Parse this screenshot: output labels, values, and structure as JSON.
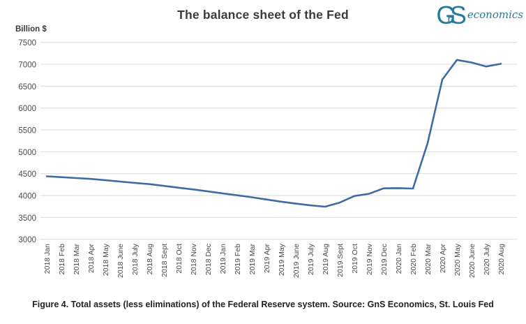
{
  "header": {
    "logo": {
      "monogram_g": "G",
      "monogram_n": "n",
      "monogram_s": "S",
      "word": "economics",
      "color": "#27799B"
    }
  },
  "chart_data": {
    "type": "line",
    "title": "The balance sheet of the Fed",
    "ylabel": "Billion $",
    "xlabel": "",
    "categories": [
      "2018 Jan",
      "2018 Feb",
      "2018 Mar",
      "2018 Apr",
      "2018 May",
      "2018 June",
      "2018 July",
      "2018 Aug",
      "2018 Sept",
      "2018 Oct",
      "2018 Nov",
      "2018 Dec",
      "2019 Jan",
      "2019 Feb",
      "2019 Mar",
      "2019 Apr",
      "2019 May",
      "2019 June",
      "2019 July",
      "2019 Aug",
      "2019 Sept",
      "2019 Oct",
      "2019 Nov",
      "2019 Dec",
      "2020 Jan",
      "2020 Feb",
      "2020 Mar",
      "2020 Apr",
      "2020 May",
      "2020 June",
      "2020 July",
      "2020 Aug"
    ],
    "series": [
      {
        "name": "Total assets (less eliminations)",
        "values": [
          4440,
          4420,
          4400,
          4380,
          4350,
          4320,
          4290,
          4260,
          4220,
          4180,
          4140,
          4095,
          4050,
          4005,
          3960,
          3910,
          3860,
          3815,
          3775,
          3745,
          3840,
          3990,
          4040,
          4165,
          4170,
          4160,
          5200,
          6650,
          7100,
          7040,
          6950,
          7010
        ]
      }
    ],
    "ylim": [
      3000,
      7500
    ],
    "yticks": [
      7500,
      7000,
      6500,
      6000,
      5500,
      5000,
      4500,
      4000,
      3500,
      3000
    ],
    "grid": "horizontal",
    "legend": "none",
    "colors": {
      "line": "#3F6BA5",
      "grid": "#D9D9D9",
      "tick_text": "#4a4a4a",
      "title_text": "#3b3b3b"
    }
  },
  "caption": "Figure 4. Total assets (less eliminations) of the Federal Reserve system. Source: GnS Economics, St. Louis Fed"
}
